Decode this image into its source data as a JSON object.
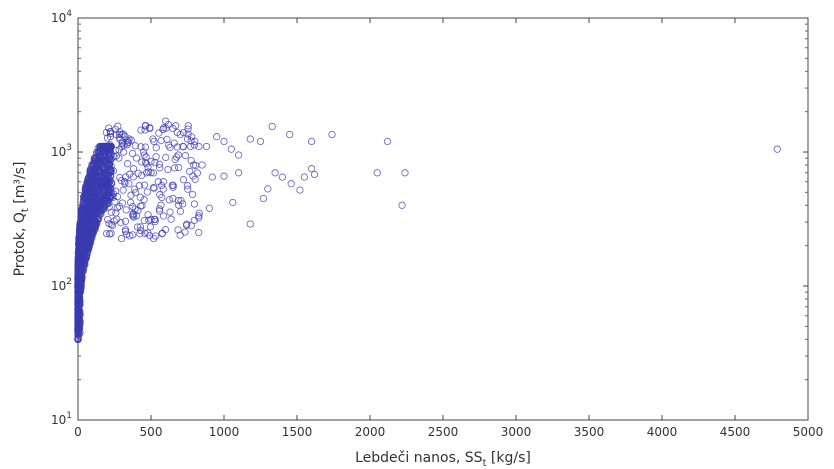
{
  "chart_data": {
    "type": "scatter",
    "xlabel": "Lebdeči nanos, SS [kg/s]",
    "ylabel": "Protok, Qt [m³/s]",
    "xlabel_parts": {
      "main": "Lebdeči nanos, SS",
      "sub": "t",
      "rest": " [kg/s]"
    },
    "ylabel_parts": {
      "main": "Protok, Q",
      "sub": "t",
      "rest": " [m³/s]"
    },
    "xlim": [
      0,
      5000
    ],
    "ylim": [
      10,
      10000
    ],
    "yscale": "log",
    "grid": false,
    "x_ticks": [
      "0",
      "500",
      "1000",
      "1500",
      "2000",
      "2500",
      "3000",
      "3500",
      "4000",
      "4500",
      "5000"
    ],
    "x_tick_values": [
      0,
      500,
      1000,
      1500,
      2000,
      2500,
      3000,
      3500,
      4000,
      4500,
      5000
    ],
    "y_ticks": [
      {
        "value": 10,
        "base": "10",
        "exp": "1"
      },
      {
        "value": 100,
        "base": "10",
        "exp": "2"
      },
      {
        "value": 1000,
        "base": "10",
        "exp": "3"
      },
      {
        "value": 10000,
        "base": "10",
        "exp": "4"
      }
    ],
    "marker_color": "#3b3bb0",
    "dense_cluster": {
      "description_points": "approximately 1500 small circles concentrated at low sediment load",
      "x_range": [
        0,
        250
      ],
      "y_range": [
        40,
        1000
      ]
    },
    "sampled_points": [
      [
        600,
        1700
      ],
      [
        620,
        1600
      ],
      [
        650,
        1500
      ],
      [
        680,
        1400
      ],
      [
        700,
        1350
      ],
      [
        750,
        1250
      ],
      [
        800,
        1200
      ],
      [
        880,
        1100
      ],
      [
        950,
        1300
      ],
      [
        1000,
        1200
      ],
      [
        1050,
        1050
      ],
      [
        1100,
        950
      ],
      [
        1180,
        1250
      ],
      [
        1250,
        1200
      ],
      [
        1330,
        1550
      ],
      [
        1450,
        1350
      ],
      [
        1600,
        1200
      ],
      [
        1740,
        1350
      ],
      [
        1180,
        290
      ],
      [
        1270,
        450
      ],
      [
        1350,
        700
      ],
      [
        1460,
        580
      ],
      [
        1550,
        650
      ],
      [
        1600,
        750
      ],
      [
        1620,
        680
      ],
      [
        1520,
        520
      ],
      [
        1400,
        650
      ],
      [
        1300,
        530
      ],
      [
        1100,
        700
      ],
      [
        1000,
        660
      ],
      [
        900,
        380
      ],
      [
        830,
        350
      ],
      [
        700,
        240
      ],
      [
        650,
        450
      ],
      [
        560,
        480
      ],
      [
        480,
        340
      ],
      [
        430,
        260
      ],
      [
        400,
        900
      ],
      [
        450,
        1000
      ],
      [
        500,
        850
      ],
      [
        550,
        600
      ],
      [
        750,
        560
      ],
      [
        850,
        800
      ],
      [
        920,
        650
      ],
      [
        1060,
        420
      ],
      [
        2050,
        700
      ],
      [
        2120,
        1200
      ],
      [
        2220,
        400
      ],
      [
        2240,
        700
      ],
      [
        4790,
        1050
      ],
      [
        300,
        1100
      ],
      [
        350,
        1250
      ],
      [
        380,
        750
      ],
      [
        260,
        1350
      ],
      [
        280,
        900
      ],
      [
        320,
        600
      ],
      [
        360,
        420
      ],
      [
        420,
        560
      ],
      [
        470,
        700
      ],
      [
        520,
        1200
      ]
    ]
  }
}
